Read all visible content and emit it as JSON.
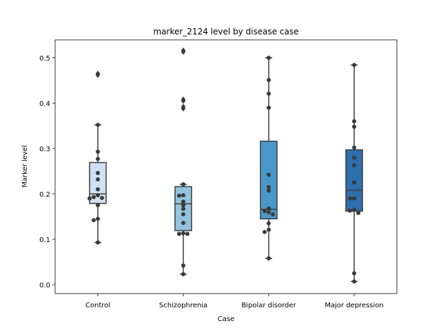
{
  "chart_data": {
    "type": "box",
    "title": "marker_2124 level by disease case",
    "xlabel": "Case",
    "ylabel": "Marker level",
    "categories": [
      "Control",
      "Schizophrenia",
      "Bipolar disorder",
      "Major depression"
    ],
    "ylim": [
      -0.02,
      0.54
    ],
    "yticks": [
      0.0,
      0.1,
      0.2,
      0.3,
      0.4,
      0.5
    ],
    "ytick_labels": [
      "0.0",
      "0.1",
      "0.2",
      "0.3",
      "0.4",
      "0.5"
    ],
    "grid": false,
    "box_colors": [
      "#cfe1f2",
      "#93c4de",
      "#4a98c9",
      "#2e6fad"
    ],
    "edge_color": "#3a3a3a",
    "point_color": "#3a3a3a",
    "boxes": [
      {
        "category": "Control",
        "whisker_low": 0.093,
        "q1": 0.179,
        "median": 0.2,
        "q3": 0.269,
        "whisker_high": 0.352,
        "outliers": [
          0.465,
          0.462
        ],
        "points": [
          0.352,
          0.293,
          0.277,
          0.246,
          0.232,
          0.21,
          0.197,
          0.193,
          0.191,
          0.19,
          0.175,
          0.145,
          0.142,
          0.093
        ]
      },
      {
        "category": "Schizophrenia",
        "whisker_low": 0.023,
        "q1": 0.119,
        "median": 0.178,
        "q3": 0.216,
        "whisker_high": 0.221,
        "outliers": [
          0.516,
          0.513,
          0.408,
          0.405,
          0.392,
          0.388
        ],
        "points": [
          0.221,
          0.197,
          0.196,
          0.183,
          0.175,
          0.167,
          0.155,
          0.136,
          0.113,
          0.112,
          0.112,
          0.042,
          0.023
        ]
      },
      {
        "category": "Bipolar disorder",
        "whisker_low": 0.058,
        "q1": 0.145,
        "median": 0.166,
        "q3": 0.316,
        "whisker_high": 0.5,
        "outliers": [],
        "points": [
          0.5,
          0.451,
          0.421,
          0.39,
          0.242,
          0.215,
          0.207,
          0.168,
          0.162,
          0.16,
          0.155,
          0.135,
          0.121,
          0.116,
          0.058
        ]
      },
      {
        "category": "Major depression",
        "whisker_low": 0.007,
        "q1": 0.162,
        "median": 0.208,
        "q3": 0.297,
        "whisker_high": 0.484,
        "outliers": [],
        "points": [
          0.484,
          0.36,
          0.348,
          0.302,
          0.28,
          0.263,
          0.225,
          0.19,
          0.19,
          0.165,
          0.163,
          0.158,
          0.025,
          0.007
        ]
      }
    ]
  }
}
